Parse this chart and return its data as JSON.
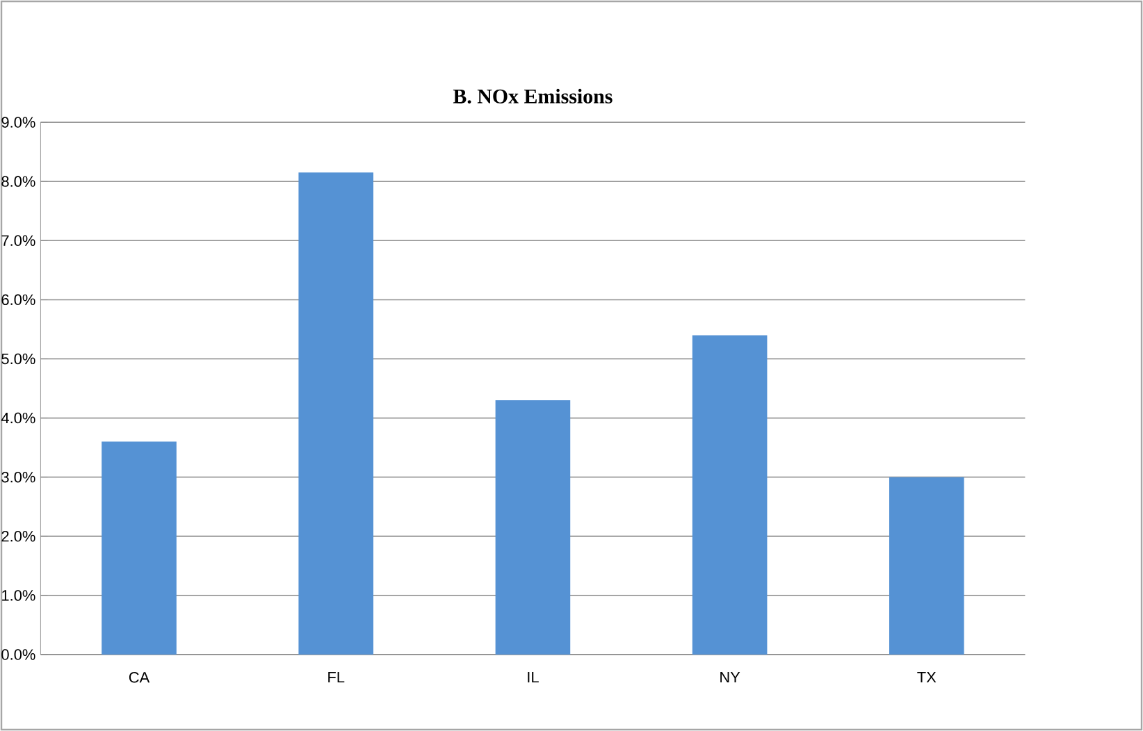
{
  "chart_data": {
    "type": "bar",
    "title": "B. NOx Emissions",
    "categories": [
      "CA",
      "FL",
      "IL",
      "NY",
      "TX"
    ],
    "values": [
      3.6,
      8.15,
      4.3,
      5.4,
      3.0
    ],
    "color": "#5592d4",
    "ylim": [
      0,
      9
    ],
    "yticks": [
      {
        "value": 0,
        "label": "0.0%"
      },
      {
        "value": 1,
        "label": "1.0%"
      },
      {
        "value": 2,
        "label": "2.0%"
      },
      {
        "value": 3,
        "label": "3.0%"
      },
      {
        "value": 4,
        "label": "4.0%"
      },
      {
        "value": 5,
        "label": "5.0%"
      },
      {
        "value": 6,
        "label": "6.0%"
      },
      {
        "value": 7,
        "label": "7.0%"
      },
      {
        "value": 8,
        "label": "8.0%"
      },
      {
        "value": 9,
        "label": "9.0%"
      }
    ],
    "grid": "y"
  }
}
